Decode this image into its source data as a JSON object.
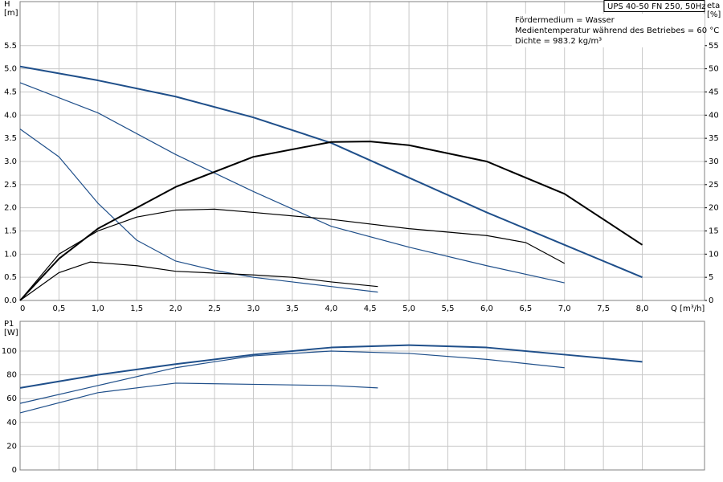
{
  "chart_data": [
    {
      "type": "line",
      "info_box": "UPS 40-50 FN 250, 50Hz",
      "annotations": [
        "Fördermedium = Wasser",
        "Medientemperatur während des Betriebes = 60 °C",
        "Dichte = 983.2 kg/m³"
      ],
      "ylabel": [
        "H",
        "[m]"
      ],
      "y2label": [
        "eta",
        "[%]"
      ],
      "xlabel": "Q [m³/h]",
      "xlim": [
        0,
        8.8
      ],
      "ylim": [
        0,
        6.45
      ],
      "y2lim": [
        0,
        64.5
      ],
      "grid": true,
      "show_xtick_labels": true,
      "xticks": [
        0,
        {
          "value": 0.5,
          "label": "0,5"
        },
        {
          "value": 1,
          "label": "1,0"
        },
        {
          "value": 1.5,
          "label": "1,5"
        },
        {
          "value": 2,
          "label": "2,0"
        },
        {
          "value": 2.5,
          "label": "2,5"
        },
        {
          "value": 3,
          "label": "3,0"
        },
        {
          "value": 3.5,
          "label": "3,5"
        },
        {
          "value": 4,
          "label": "4,0"
        },
        {
          "value": 4.5,
          "label": "4,5"
        },
        {
          "value": 5,
          "label": "5,0"
        },
        {
          "value": 5.5,
          "label": "5,5"
        },
        {
          "value": 6,
          "label": "6,0"
        },
        {
          "value": 6.5,
          "label": "6,5"
        },
        {
          "value": 7,
          "label": "7,0"
        },
        {
          "value": 7.5,
          "label": "7,5"
        },
        {
          "value": 8,
          "label": "8,0"
        }
      ],
      "yticks": [
        {
          "value": 0,
          "label": "0.0"
        },
        0.5,
        {
          "value": 1,
          "label": "1.0"
        },
        1.5,
        {
          "value": 2,
          "label": "2.0"
        },
        2.5,
        {
          "value": 3,
          "label": "3.0"
        },
        3.5,
        {
          "value": 4,
          "label": "4.0"
        },
        4.5,
        {
          "value": 5,
          "label": "5.0"
        },
        5.5
      ],
      "y2ticks": [
        0,
        5,
        10,
        15,
        20,
        25,
        30,
        35,
        40,
        45,
        50,
        55
      ],
      "series": [
        {
          "color": "#1f4f8a",
          "width": 2,
          "x": [
            0,
            1,
            2,
            3,
            4,
            5,
            6,
            7,
            8
          ],
          "values": [
            5.05,
            4.75,
            4.4,
            3.95,
            3.4,
            2.65,
            1.9,
            1.2,
            0.5
          ]
        },
        {
          "color": "#1f4f8a",
          "width": 1.2,
          "x": [
            0,
            1,
            2,
            3,
            4,
            5,
            6,
            7
          ],
          "values": [
            4.7,
            4.05,
            3.15,
            2.35,
            1.6,
            1.15,
            0.75,
            0.38
          ]
        },
        {
          "color": "#1f4f8a",
          "width": 1.2,
          "x": [
            0,
            0.5,
            1,
            1.5,
            2,
            2.5,
            3,
            3.5,
            4,
            4.6
          ],
          "values": [
            3.7,
            3.1,
            2.1,
            1.3,
            0.85,
            0.65,
            0.5,
            0.4,
            0.3,
            0.18
          ]
        },
        {
          "color": "#000000",
          "width": 2,
          "axis": "y2",
          "x": [
            0,
            0.5,
            1,
            2,
            3,
            4,
            4.5,
            5,
            6,
            7,
            8
          ],
          "values": [
            0,
            9,
            15.5,
            24.5,
            31,
            34.2,
            34.3,
            33.5,
            30,
            23,
            12
          ]
        },
        {
          "color": "#000000",
          "width": 1.2,
          "axis": "y2",
          "x": [
            0,
            0.5,
            1,
            1.5,
            2,
            2.5,
            3,
            4,
            5,
            6,
            6.5,
            7
          ],
          "values": [
            0,
            10,
            15,
            18,
            19.5,
            19.7,
            19,
            17.5,
            15.5,
            14,
            12.5,
            8
          ]
        },
        {
          "color": "#000000",
          "width": 1.2,
          "axis": "y2",
          "x": [
            0,
            0.5,
            0.9,
            1.5,
            2,
            3,
            3.5,
            4,
            4.6
          ],
          "values": [
            0,
            6,
            8.3,
            7.5,
            6.3,
            5.5,
            5,
            4,
            3
          ]
        }
      ]
    },
    {
      "type": "line",
      "ylabel": [
        "P1",
        "[W]"
      ],
      "xlim": [
        0,
        8.8
      ],
      "ylim": [
        0,
        125
      ],
      "grid": true,
      "show_xtick_labels": false,
      "xticks": [
        0,
        0.5,
        1,
        1.5,
        2,
        2.5,
        3,
        3.5,
        4,
        4.5,
        5,
        5.5,
        6,
        6.5,
        7,
        7.5,
        8
      ],
      "yticks": [
        0,
        20,
        40,
        60,
        80,
        100
      ],
      "series": [
        {
          "color": "#1f4f8a",
          "width": 2,
          "x": [
            0,
            1,
            2,
            3,
            4,
            5,
            6,
            7,
            8
          ],
          "values": [
            69,
            80,
            89,
            97,
            103,
            105,
            103,
            97,
            91
          ]
        },
        {
          "color": "#1f4f8a",
          "width": 1.2,
          "x": [
            0,
            1,
            2,
            3,
            4,
            5,
            6,
            7
          ],
          "values": [
            56,
            71,
            86,
            96,
            100,
            98,
            93,
            86
          ]
        },
        {
          "color": "#1f4f8a",
          "width": 1.2,
          "x": [
            0,
            1,
            2,
            3,
            4,
            4.6
          ],
          "values": [
            48,
            65,
            73,
            72,
            71,
            69
          ]
        }
      ]
    }
  ]
}
